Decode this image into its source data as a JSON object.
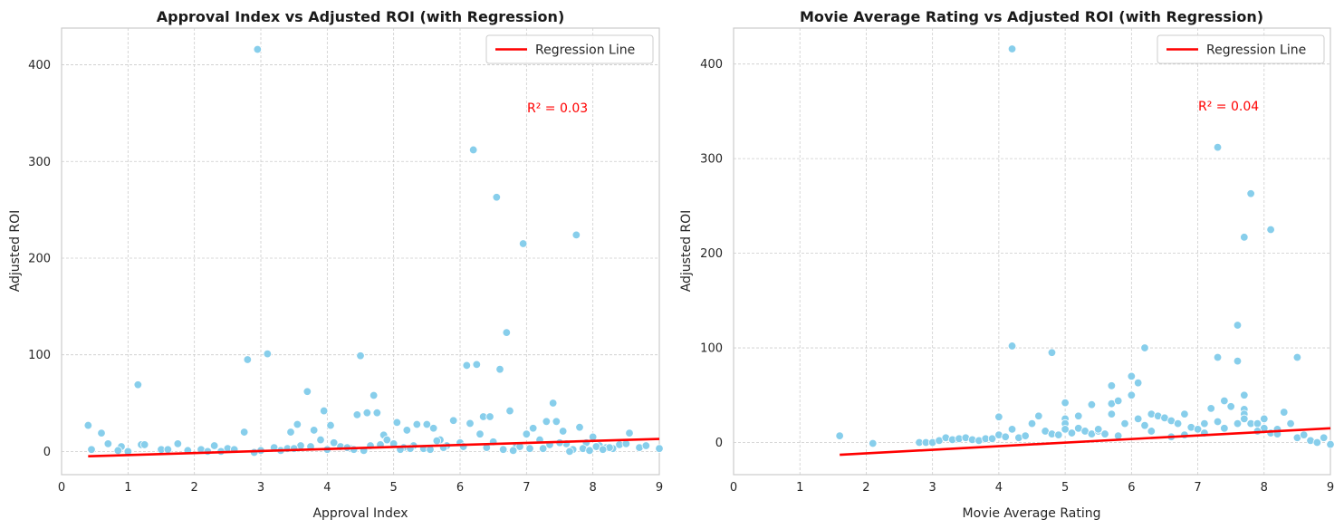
{
  "chart_data": [
    {
      "type": "scatter",
      "title": "Approval Index vs Adjusted ROI (with Regression)",
      "xlabel": "Approval Index",
      "ylabel": "Adjusted ROI",
      "xlim": [
        0,
        9
      ],
      "ylim": [
        -24,
        438
      ],
      "xticks": [
        0,
        1,
        2,
        3,
        4,
        5,
        6,
        7,
        8,
        9
      ],
      "yticks": [
        0,
        100,
        200,
        300,
        400
      ],
      "grid": true,
      "legend": {
        "position": "top-right",
        "entries": [
          "Regression Line"
        ]
      },
      "annotation": {
        "text": "R² = 0.03",
        "x": 7.0,
        "y": 350
      },
      "point_color": "#87ceeb",
      "regression_color": "#ff0000",
      "regression": {
        "x": [
          0.4,
          9.0
        ],
        "y": [
          -5,
          13
        ]
      },
      "points": {
        "x": [
          0.4,
          0.45,
          0.6,
          0.7,
          0.9,
          1.15,
          1.2,
          1.25,
          0.85,
          1.0,
          1.5,
          1.75,
          2.3,
          2.75,
          2.8,
          2.95,
          3.1,
          3.45,
          3.55,
          3.7,
          3.8,
          3.95,
          4.05,
          4.45,
          4.5,
          4.6,
          4.7,
          4.75,
          4.85,
          5.05,
          5.2,
          5.35,
          5.5,
          5.6,
          5.9,
          6.1,
          6.15,
          6.2,
          6.25,
          6.3,
          6.35,
          6.45,
          6.55,
          6.6,
          6.7,
          6.75,
          6.95,
          7.0,
          7.1,
          7.3,
          7.4,
          7.45,
          7.55,
          7.75,
          7.8,
          8.0,
          8.3,
          8.55,
          8.7,
          9.0,
          1.9,
          2.1,
          2.5,
          3.2,
          3.3,
          3.6,
          3.9,
          4.2,
          4.35,
          4.9,
          5.0,
          5.15,
          5.3,
          5.45,
          5.7,
          5.8,
          6.0,
          6.4,
          6.5,
          6.85,
          7.2,
          7.6,
          7.9,
          8.1,
          8.2,
          8.4,
          8.8,
          2.2,
          2.6,
          3.0,
          3.4,
          4.0,
          4.1,
          4.3,
          4.55,
          4.8,
          5.25,
          5.55,
          5.65,
          6.05,
          6.65,
          6.9,
          7.05,
          7.35,
          7.5,
          7.7,
          7.85,
          8.05,
          8.25,
          8.5,
          1.6,
          2.4,
          2.9,
          3.5,
          3.75,
          4.4,
          4.65,
          5.1,
          5.75,
          6.8,
          7.25,
          7.65,
          7.95,
          8.15
        ],
        "y": [
          27,
          2,
          19,
          8,
          5,
          69,
          7,
          7,
          1,
          0,
          2,
          8,
          6,
          20,
          95,
          416,
          101,
          20,
          28,
          62,
          22,
          42,
          27,
          38,
          99,
          40,
          58,
          40,
          17,
          30,
          22,
          28,
          28,
          24,
          32,
          89,
          29,
          312,
          90,
          18,
          36,
          36,
          263,
          85,
          123,
          42,
          215,
          18,
          24,
          31,
          50,
          31,
          21,
          224,
          25,
          15,
          3,
          19,
          4,
          3,
          1,
          2,
          3,
          4,
          1,
          6,
          12,
          5,
          3,
          12,
          8,
          4,
          6,
          3,
          12,
          6,
          9,
          4,
          10,
          6,
          12,
          8,
          9,
          6,
          4,
          7,
          6,
          0,
          2,
          1,
          3,
          2,
          9,
          4,
          1,
          7,
          3,
          2,
          11,
          5,
          2,
          5,
          3,
          7,
          9,
          2,
          3,
          5,
          4,
          8,
          2,
          0,
          -1,
          3,
          5,
          2,
          6,
          2,
          4,
          1,
          3,
          0,
          1,
          2
        ]
      }
    },
    {
      "type": "scatter",
      "title": "Movie Average Rating vs Adjusted ROI (with Regression)",
      "xlabel": "Movie Average Rating",
      "ylabel": "Adjusted ROI",
      "xlim": [
        0,
        9
      ],
      "ylim": [
        -34,
        438
      ],
      "xticks": [
        0,
        1,
        2,
        3,
        4,
        5,
        6,
        7,
        8,
        9
      ],
      "yticks": [
        0,
        100,
        200,
        300,
        400
      ],
      "grid": true,
      "legend": {
        "position": "top-right",
        "entries": [
          "Regression Line"
        ]
      },
      "annotation": {
        "text": "R² = 0.04",
        "x": 7.0,
        "y": 350
      },
      "point_color": "#87ceeb",
      "regression_color": "#ff0000",
      "regression": {
        "x": [
          1.6,
          9.0
        ],
        "y": [
          -13,
          15
        ]
      },
      "points": {
        "x": [
          1.6,
          2.1,
          2.8,
          2.9,
          3.0,
          3.1,
          3.2,
          3.3,
          3.4,
          3.5,
          3.6,
          3.7,
          3.8,
          3.9,
          4.0,
          4.0,
          4.1,
          4.2,
          4.2,
          4.2,
          4.3,
          4.4,
          4.5,
          4.6,
          4.7,
          4.8,
          4.8,
          4.9,
          5.0,
          5.0,
          5.0,
          5.0,
          5.1,
          5.2,
          5.2,
          5.3,
          5.4,
          5.4,
          5.5,
          5.6,
          5.7,
          5.7,
          5.7,
          5.8,
          5.9,
          6.0,
          6.0,
          6.1,
          6.1,
          6.2,
          6.2,
          6.3,
          6.4,
          6.5,
          6.6,
          6.7,
          6.8,
          6.9,
          7.0,
          7.1,
          7.2,
          7.3,
          7.3,
          7.3,
          7.4,
          7.4,
          7.5,
          7.6,
          7.6,
          7.6,
          7.7,
          7.7,
          7.7,
          7.7,
          7.7,
          7.8,
          7.8,
          7.9,
          8.0,
          8.0,
          8.1,
          8.1,
          8.2,
          8.3,
          8.4,
          8.5,
          8.5,
          8.6,
          8.7,
          8.8,
          8.9,
          9.0,
          5.5,
          6.3,
          6.8,
          7.1,
          7.9,
          8.2,
          6.6,
          5.8
        ],
        "y": [
          7,
          -1,
          0,
          0,
          0,
          2,
          5,
          3,
          4,
          5,
          3,
          2,
          4,
          4,
          27,
          8,
          6,
          416,
          102,
          14,
          5,
          7,
          20,
          28,
          12,
          95,
          9,
          8,
          42,
          25,
          20,
          14,
          10,
          28,
          15,
          12,
          40,
          9,
          12,
          9,
          60,
          41,
          30,
          44,
          20,
          70,
          50,
          63,
          25,
          100,
          18,
          30,
          28,
          26,
          23,
          20,
          30,
          16,
          14,
          20,
          36,
          312,
          90,
          22,
          44,
          15,
          38,
          124,
          86,
          20,
          217,
          50,
          35,
          30,
          25,
          263,
          20,
          20,
          25,
          15,
          225,
          10,
          14,
          32,
          20,
          90,
          5,
          8,
          2,
          0,
          5,
          -2,
          14,
          12,
          8,
          10,
          12,
          9,
          6,
          7
        ]
      }
    }
  ]
}
